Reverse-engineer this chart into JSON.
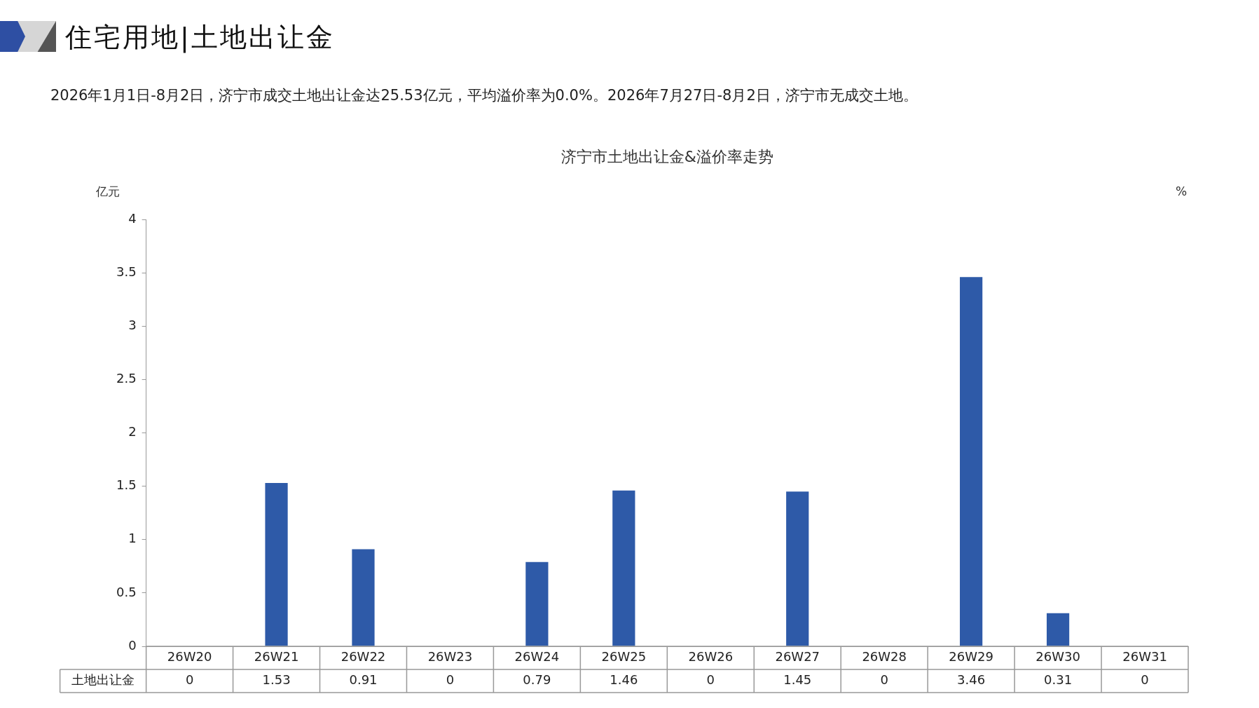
{
  "chart_data": {
    "type": "bar",
    "title": "住宅用地|土地出让金",
    "subtitle": "2026年1月1日-8月2日，济宁市成交土地出让金达25.53亿元，平均溢价率为0.0%。2026年7月27日-8月2日，济宁市无成交土地。",
    "annotations": [
      "济宁市土地出让金&溢价率走势"
    ],
    "ylabel": "亿元",
    "y2label": "%",
    "categories": [
      "26W20",
      "26W21",
      "26W22",
      "26W23",
      "26W24",
      "26W25",
      "26W26",
      "26W27",
      "26W28",
      "26W29",
      "26W30",
      "26W31"
    ],
    "series": [
      {
        "name": "土地出让金",
        "color": "#2e5aa8",
        "values": [
          0,
          1.53,
          0.91,
          0,
          0.79,
          1.46,
          0,
          1.45,
          0,
          3.46,
          0.31,
          0
        ]
      }
    ],
    "ylim": [
      0,
      4
    ],
    "yticks": [
      0,
      0.5,
      1,
      1.5,
      2,
      2.5,
      3,
      3.5,
      4
    ],
    "grid": false,
    "legend": false,
    "data_labels": true
  }
}
